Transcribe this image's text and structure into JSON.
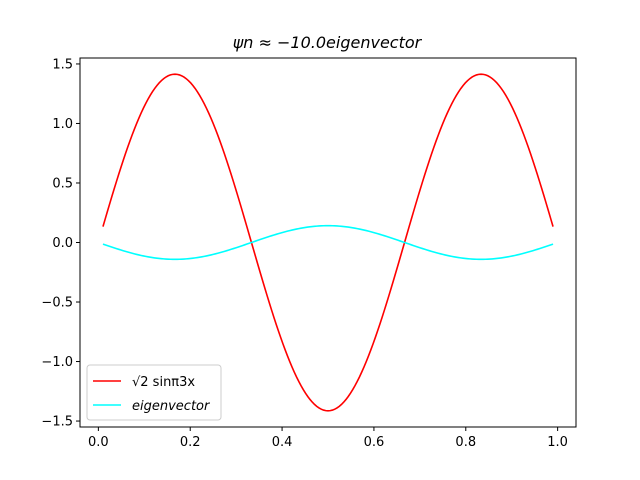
{
  "chart_data": {
    "type": "line",
    "title": "ψn ≈ −10.0eigenvector",
    "xlabel": "",
    "ylabel": "",
    "xlim": [
      -0.04,
      1.04
    ],
    "ylim": [
      -1.55,
      1.55
    ],
    "x_ticks": [
      0.0,
      0.2,
      0.4,
      0.6,
      0.8,
      1.0
    ],
    "x_tick_labels": [
      "0.0",
      "0.2",
      "0.4",
      "0.6",
      "0.8",
      "1.0"
    ],
    "y_ticks": [
      -1.5,
      -1.0,
      -0.5,
      0.0,
      0.5,
      1.0,
      1.5
    ],
    "y_tick_labels": [
      "−1.5",
      "−1.0",
      "−0.5",
      "0.0",
      "0.5",
      "1.0",
      "1.5"
    ],
    "grid": false,
    "legend_position": "lower-left",
    "x_range": [
      0.01,
      0.99
    ],
    "series": [
      {
        "name": "√2 sinπ3x",
        "color": "#ff0000",
        "x": [
          0.01,
          0.0833,
          0.1667,
          0.25,
          0.3333,
          0.4167,
          0.5,
          0.5833,
          0.6667,
          0.75,
          0.8333,
          0.9167,
          0.99
        ],
        "values": [
          0.133,
          1.0,
          1.414,
          1.0,
          0.0,
          -1.0,
          -1.414,
          -1.0,
          0.0,
          1.0,
          1.414,
          1.0,
          0.133
        ]
      },
      {
        "name": "eigenvector",
        "color": "#00ffff",
        "x": [
          0.01,
          0.0833,
          0.1667,
          0.25,
          0.3333,
          0.4167,
          0.5,
          0.5833,
          0.6667,
          0.75,
          0.8333,
          0.9167,
          0.99
        ],
        "values": [
          -0.0133,
          -0.1,
          -0.1414,
          -0.1,
          0.0,
          0.1,
          0.1414,
          0.1,
          0.0,
          -0.1,
          -0.1414,
          -0.1,
          -0.0133
        ]
      }
    ]
  }
}
